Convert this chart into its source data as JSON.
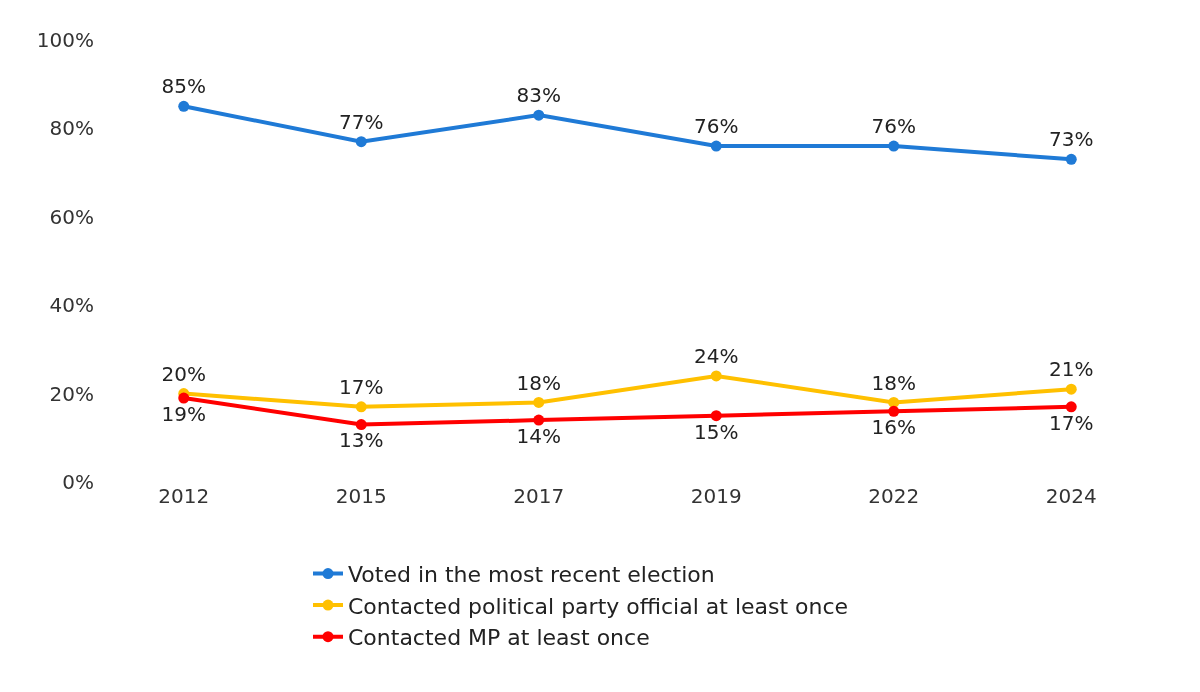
{
  "chart_data": {
    "type": "line",
    "categories": [
      "2012",
      "2015",
      "2017",
      "2019",
      "2022",
      "2024"
    ],
    "series": [
      {
        "name": "Voted in the most recent election",
        "color": "#1f7ad6",
        "values": [
          85,
          77,
          83,
          76,
          76,
          73
        ],
        "value_labels": [
          "85%",
          "77%",
          "83%",
          "76%",
          "76%",
          "73%"
        ]
      },
      {
        "name": "Contacted political party official at least once",
        "color": "#ffc000",
        "values": [
          20,
          17,
          18,
          24,
          18,
          21
        ],
        "value_labels": [
          "20%",
          "17%",
          "18%",
          "24%",
          "18%",
          "21%"
        ]
      },
      {
        "name": "Contacted MP at least once",
        "color": "#ff0000",
        "values": [
          19,
          13,
          14,
          15,
          16,
          17
        ],
        "value_labels": [
          "19%",
          "13%",
          "14%",
          "15%",
          "16%",
          "17%"
        ]
      }
    ],
    "ylim": [
      0,
      100
    ],
    "yticks": [
      {
        "value": 0,
        "label": "0%"
      },
      {
        "value": 20,
        "label": "20%"
      },
      {
        "value": 40,
        "label": "40%"
      },
      {
        "value": 60,
        "label": "60%"
      },
      {
        "value": 80,
        "label": "80%"
      },
      {
        "value": 100,
        "label": "100%"
      }
    ],
    "legend": "bottom",
    "marker": "circle",
    "line_style": "solid"
  }
}
